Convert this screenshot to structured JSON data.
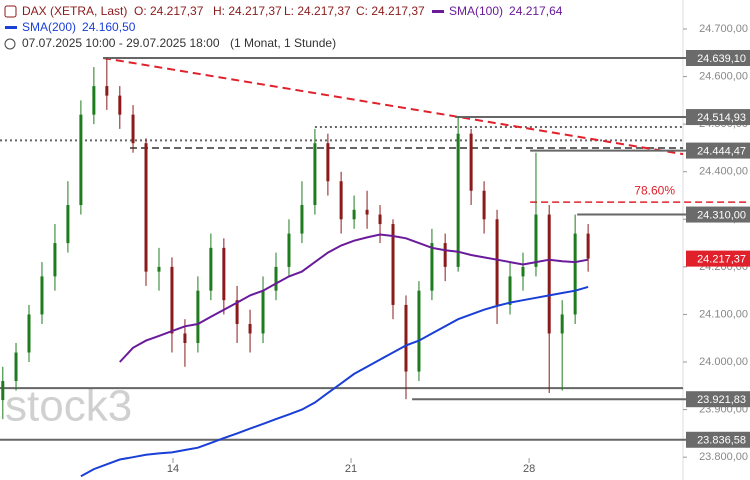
{
  "chart_data": {
    "type": "candlestick",
    "header": {
      "instrument": "DAX (XETRA, Last)",
      "open": "O: 24.217,37",
      "high": "H: 24.217,37",
      "low": "L: 24.217,37",
      "close": "C: 24.217,37",
      "range": "07.07.2025 10:00 - 29.07.2025 18:00",
      "period": "(1 Monat, 1 Stunde)"
    },
    "watermark": "stock3",
    "x": [
      7.31,
      7.83,
      8.34,
      8.85,
      9.36,
      9.87,
      10.38,
      10.89,
      11.4,
      11.91,
      12.43,
      12.94,
      13.45,
      13.96,
      14.47,
      14.98,
      15.49,
      16.0,
      16.52,
      17.03,
      17.54,
      18.05,
      18.56,
      19.07,
      19.58,
      20.09,
      20.61,
      21.12,
      21.63,
      22.14,
      22.65,
      23.16,
      23.67,
      24.18,
      24.7,
      25.21,
      25.72,
      26.23,
      26.74,
      27.25,
      27.76,
      28.27,
      28.79,
      29.3,
      29.81,
      30.32
    ],
    "open": [
      23920,
      23960,
      24020,
      24100,
      24180,
      24250,
      24330,
      24520,
      24580,
      24560,
      24520,
      24460,
      24190,
      24200,
      24060,
      24040,
      24150,
      24240,
      24130,
      24080,
      24060,
      24150,
      24200,
      24270,
      24330,
      24460,
      24380,
      24300,
      24320,
      24310,
      24290,
      24120,
      23980,
      24150,
      24250,
      24200,
      24480,
      24360,
      24300,
      24120,
      24180,
      24200,
      24310,
      24060,
      24100,
      24270
    ],
    "high": [
      23990,
      24040,
      24120,
      24210,
      24290,
      24380,
      24550,
      24620,
      24639.1,
      24580,
      24540,
      24470,
      24240,
      24220,
      24090,
      24180,
      24270,
      24260,
      24160,
      24110,
      24180,
      24230,
      24300,
      24380,
      24490,
      24480,
      24400,
      24350,
      24360,
      24330,
      24300,
      24140,
      24170,
      24280,
      24270,
      24514.93,
      24490,
      24380,
      24320,
      24210,
      24230,
      24440,
      24330,
      24130,
      24310,
      24290
    ],
    "low": [
      23880,
      23940,
      24000,
      24080,
      24150,
      24230,
      24310,
      24500,
      24530,
      24490,
      24440,
      24160,
      24150,
      24020,
      23990,
      24020,
      24130,
      24100,
      24040,
      24020,
      24040,
      24130,
      24180,
      24250,
      24310,
      24350,
      24270,
      24280,
      24280,
      24250,
      24090,
      23921.83,
      23960,
      24130,
      24170,
      24190,
      24330,
      24270,
      24080,
      24100,
      24150,
      24180,
      23935,
      23940,
      24080,
      24190
    ],
    "close": [
      23960,
      24020,
      24100,
      24180,
      24250,
      24330,
      24520,
      24580,
      24560,
      24520,
      24460,
      24190,
      24200,
      24060,
      24040,
      24150,
      24240,
      24130,
      24080,
      24060,
      24150,
      24200,
      24270,
      24330,
      24460,
      24380,
      24300,
      24320,
      24310,
      24290,
      24120,
      23980,
      24150,
      24250,
      24200,
      24480,
      24360,
      24300,
      24120,
      24180,
      24200,
      24310,
      24060,
      24100,
      24270,
      24217.37
    ],
    "up_color": "#1e7b1e",
    "down_color": "#8b1a1a",
    "series": [
      {
        "name": "SMA(100)",
        "color": "#6a1b9a",
        "last_label": "24.217,64",
        "values": [
          null,
          null,
          null,
          null,
          null,
          null,
          null,
          null,
          null,
          24000,
          24030,
          24045,
          24055,
          24065,
          24075,
          24080,
          24095,
          24110,
          24125,
          24140,
          24150,
          24165,
          24180,
          24190,
          24210,
          24230,
          24245,
          24255,
          24262,
          24268,
          24265,
          24260,
          24250,
          24240,
          24235,
          24232,
          24225,
          24220,
          24215,
          24210,
          24205,
          24210,
          24215,
          24212,
          24210,
          24215
        ]
      },
      {
        "name": "SMA(200)",
        "color": "#1a3fd6",
        "last_label": "24.160,50",
        "values": [
          null,
          null,
          null,
          null,
          null,
          null,
          23760,
          23775,
          23785,
          23795,
          23800,
          23805,
          23808,
          23810,
          23815,
          23820,
          23830,
          23840,
          23850,
          23860,
          23870,
          23880,
          23890,
          23900,
          23915,
          23935,
          23955,
          23975,
          23990,
          24005,
          24020,
          24035,
          24045,
          24060,
          24075,
          24090,
          24100,
          24110,
          24118,
          24125,
          24130,
          24135,
          24140,
          24145,
          24150,
          24158
        ]
      }
    ],
    "levels": [
      {
        "value": 24639.1,
        "label": "24.639,10",
        "from": 11.25
      },
      {
        "value": 24514.93,
        "label": "24.514,93",
        "from": 25.09
      },
      {
        "value": 24444.47,
        "label": "24.444,47",
        "from": 28.04
      },
      {
        "value": 24310.0,
        "label": "24.310,00",
        "from": 29.89
      },
      {
        "value": 23921.83,
        "label": "23.921,83",
        "from": 23.4
      },
      {
        "value": 23836.58,
        "label": "23.836,58",
        "from": 7.2
      }
    ],
    "lines": [
      {
        "value": 23945,
        "from": 7.2,
        "style": "solid"
      },
      {
        "value": 24494,
        "from": 19.58,
        "style": "dotted"
      },
      {
        "value": 24466,
        "from": 7.2,
        "style": "dotted"
      },
      {
        "value": 24450,
        "from": 12.31,
        "style": "dashed"
      }
    ],
    "fib": {
      "value": 24336,
      "label": "78.60%",
      "from": 28.04,
      "color": "#e0202a"
    },
    "trend": {
      "x": [
        11.25,
        34.05
      ],
      "values": [
        24639.1,
        24437
      ],
      "color": "#e0202a"
    },
    "last_price": {
      "value": 24217.37,
      "label": "24.217,37",
      "color": "#e0202a"
    },
    "xlim": [
      7.2,
      34.05
    ],
    "xticks": [
      14,
      21,
      28
    ],
    "ylim": [
      23752,
      24761
    ],
    "yticks": [
      {
        "value": 24700,
        "label": "24.700,00"
      },
      {
        "value": 24600,
        "label": "24.600,00"
      },
      {
        "value": 24500,
        "label": "24.500,00"
      },
      {
        "value": 24400,
        "label": "24.400,00"
      },
      {
        "value": 24300,
        "label": "24.300,00"
      },
      {
        "value": 24200,
        "label": "24.200,00"
      },
      {
        "value": 24100,
        "label": "24.100,00"
      },
      {
        "value": 24000,
        "label": "24.000,00"
      },
      {
        "value": 23900,
        "label": "23.900,00"
      },
      {
        "value": 23800,
        "label": "23.800,00"
      }
    ]
  }
}
